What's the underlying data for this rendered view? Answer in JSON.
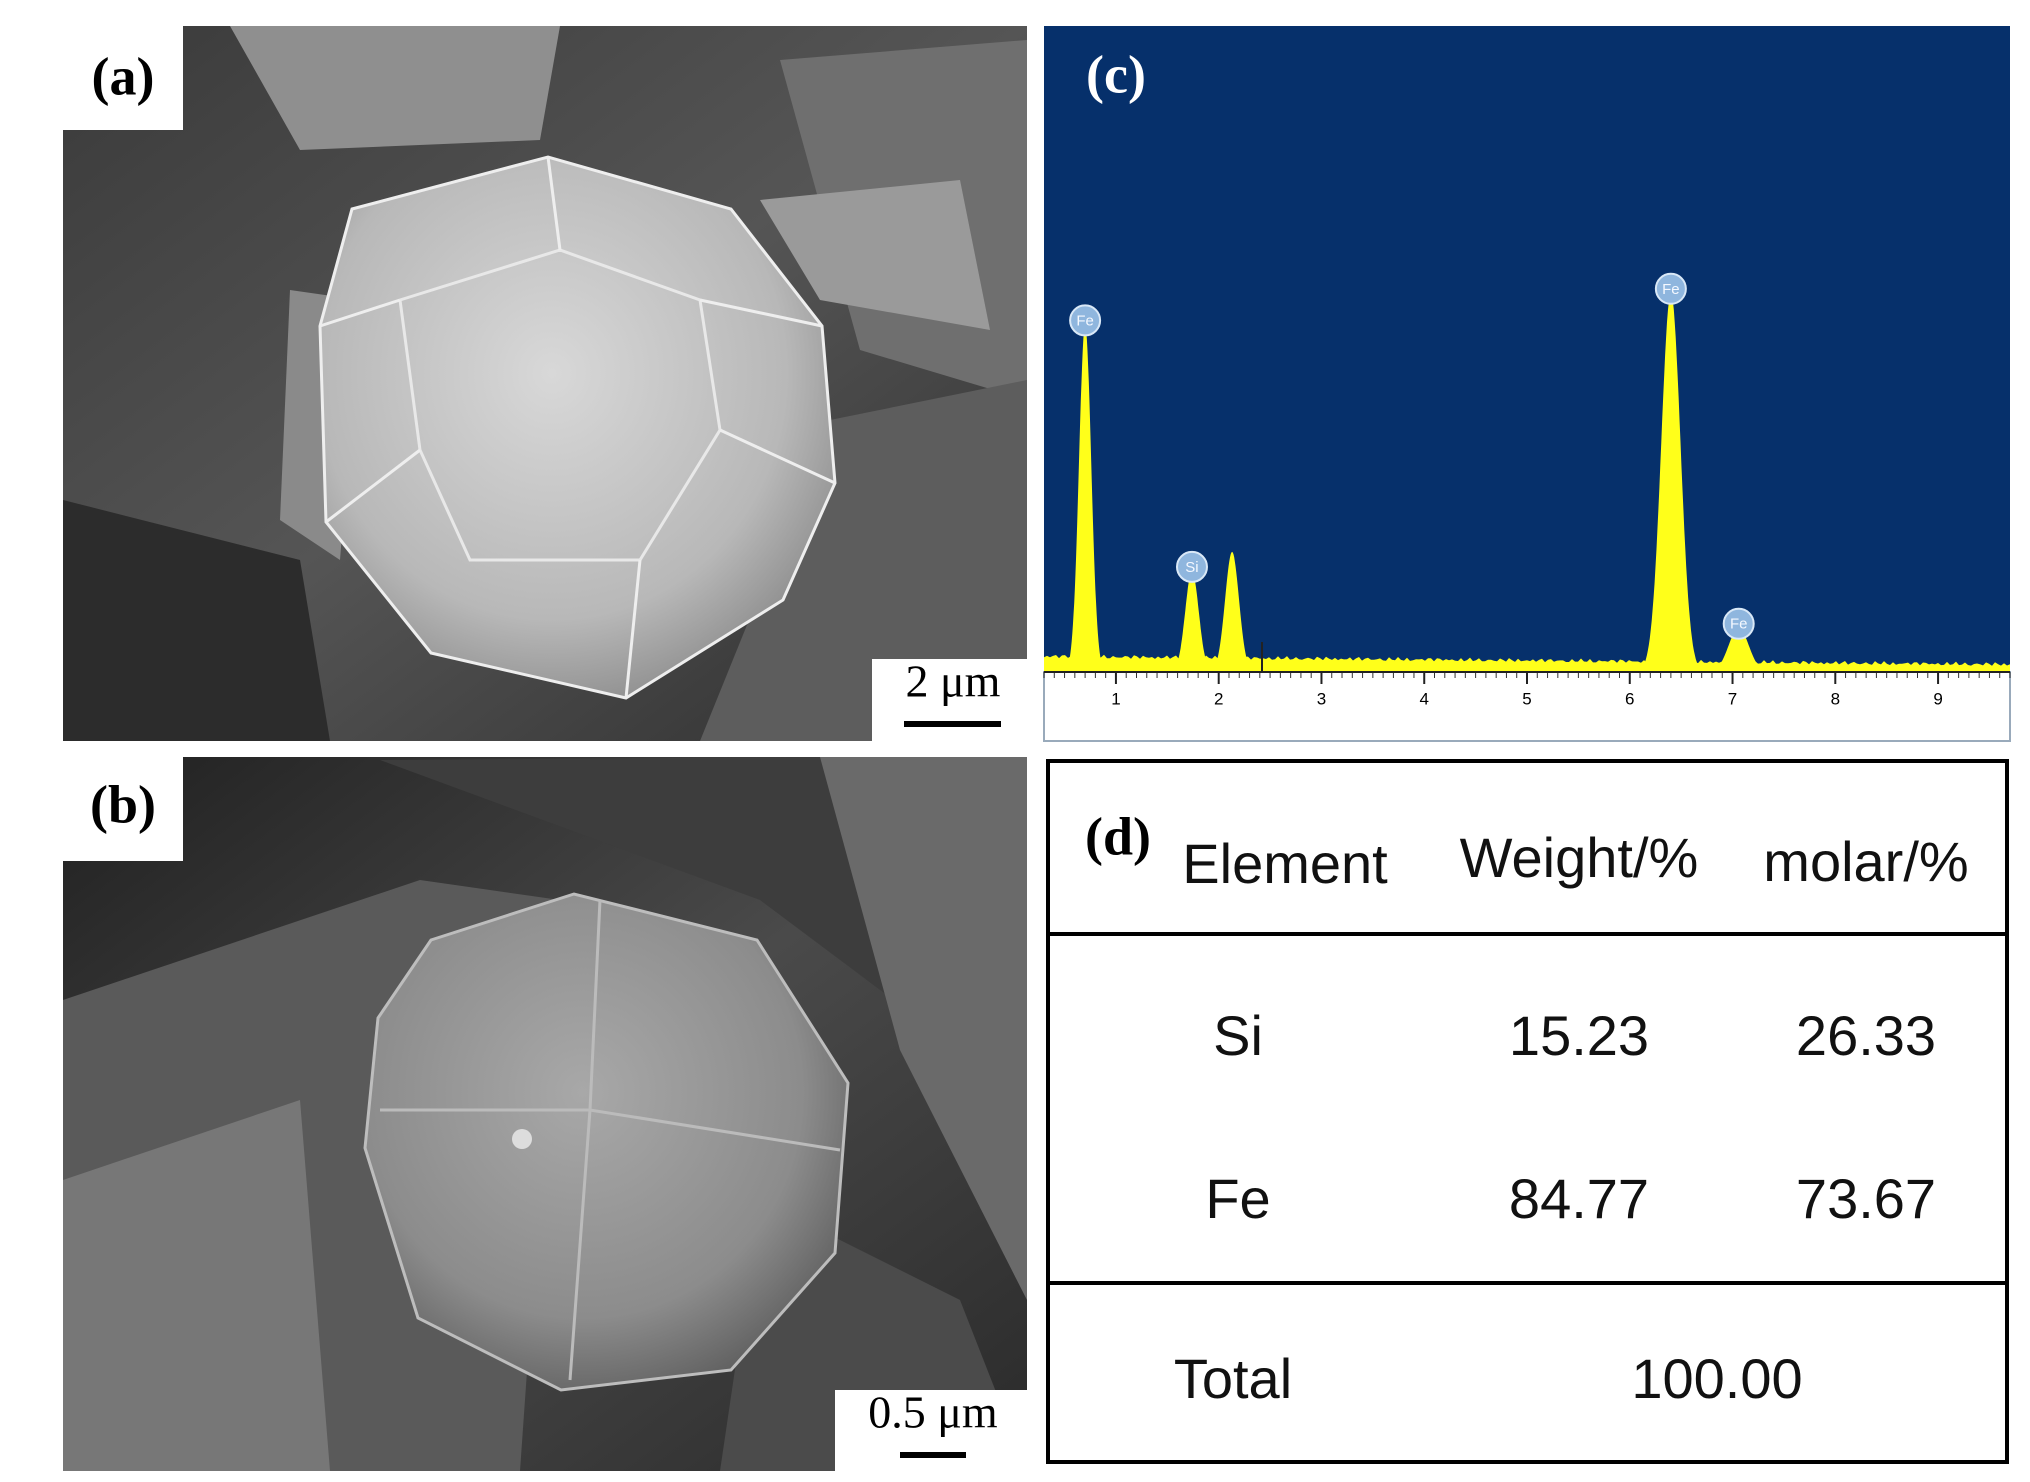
{
  "panels": {
    "a": {
      "label": "(a)",
      "scale_bar": "2 μm"
    },
    "b": {
      "label": "(b)",
      "scale_bar": "0.5 μm"
    }
  },
  "chart_data": {
    "type": "spectrum",
    "label": "(c)",
    "xlim": [
      0.3,
      9.7
    ],
    "xticks": [
      1,
      2,
      3,
      4,
      5,
      6,
      7,
      8,
      9
    ],
    "ylim": [
      0,
      100
    ],
    "color": "#ffff1a",
    "background": "#06306b",
    "peaks": [
      {
        "label": "Fe",
        "x": 0.7,
        "height": 55
      },
      {
        "label": "Si",
        "x": 1.74,
        "height": 16
      },
      {
        "label": null,
        "x": 2.13,
        "height": 19
      },
      {
        "label": "Fe",
        "x": 6.4,
        "height": 60
      },
      {
        "label": "Fe",
        "x": 7.06,
        "height": 7
      }
    ]
  },
  "table": {
    "label": "(d)",
    "columns": [
      "Element",
      "Weight/%",
      "molar/%"
    ],
    "rows": [
      [
        "Si",
        "15.23",
        "26.33"
      ],
      [
        "Fe",
        "84.77",
        "73.67"
      ]
    ],
    "total": [
      "Total",
      "100.00"
    ]
  }
}
